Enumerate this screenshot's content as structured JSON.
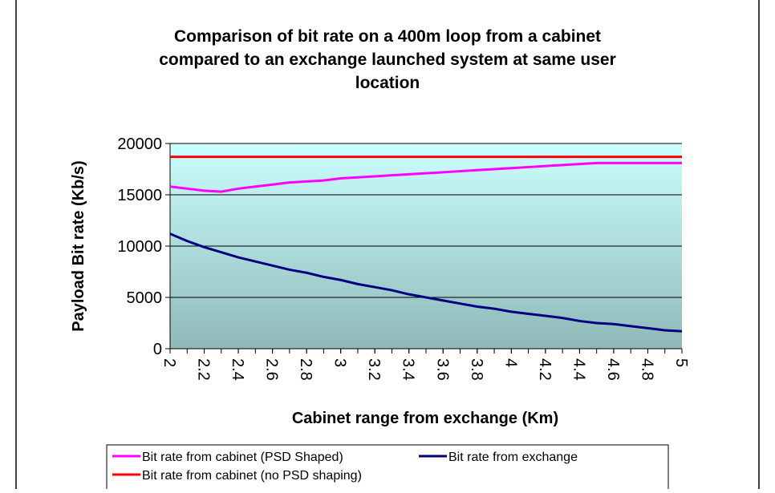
{
  "chart_data": {
    "type": "line",
    "title": "Comparison of bit rate on a 400m loop from a cabinet compared to an exchange launched system at same user location",
    "x_label": "Cabinet range from exchange (Km)",
    "y_label": "Payload Bit rate (Kb/s)",
    "x": [
      2,
      2.1,
      2.2,
      2.3,
      2.4,
      2.5,
      2.6,
      2.7,
      2.8,
      2.9,
      3,
      3.1,
      3.2,
      3.3,
      3.4,
      3.5,
      3.6,
      3.7,
      3.8,
      3.9,
      4,
      4.1,
      4.2,
      4.3,
      4.4,
      4.5,
      4.6,
      4.7,
      4.8,
      4.9,
      5
    ],
    "xlim": [
      2,
      5
    ],
    "xticks": [
      2,
      2.2,
      2.4,
      2.6,
      2.8,
      3,
      3.2,
      3.4,
      3.6,
      3.8,
      4,
      4.2,
      4.4,
      4.6,
      4.8,
      5
    ],
    "ylim": [
      0,
      20000
    ],
    "yticks": [
      0,
      5000,
      10000,
      15000,
      20000
    ],
    "grid": true,
    "legend": "bottom",
    "series": [
      {
        "name": "Bit rate from cabinet (PSD Shaped)",
        "color": "#ff00ff",
        "values": [
          15800,
          15600,
          15400,
          15300,
          15600,
          15800,
          16000,
          16200,
          16300,
          16400,
          16600,
          16700,
          16800,
          16900,
          17000,
          17100,
          17200,
          17300,
          17400,
          17500,
          17600,
          17700,
          17800,
          17900,
          18000,
          18100,
          18100,
          18100,
          18100,
          18100,
          18100
        ]
      },
      {
        "name": "Bit rate from exchange",
        "color": "#000080",
        "values": [
          11200,
          10500,
          9900,
          9400,
          8900,
          8500,
          8100,
          7700,
          7400,
          7000,
          6700,
          6300,
          6000,
          5700,
          5300,
          5000,
          4700,
          4400,
          4100,
          3900,
          3600,
          3400,
          3200,
          3000,
          2700,
          2500,
          2400,
          2200,
          2000,
          1800,
          1700
        ]
      },
      {
        "name": "Bit rate from cabinet (no PSD shaping)",
        "color": "#ff0000",
        "values": [
          18700,
          18700,
          18700,
          18700,
          18700,
          18700,
          18700,
          18700,
          18700,
          18700,
          18700,
          18700,
          18700,
          18700,
          18700,
          18700,
          18700,
          18700,
          18700,
          18700,
          18700,
          18700,
          18700,
          18700,
          18700,
          18700,
          18700,
          18700,
          18700,
          18700,
          18700
        ]
      }
    ]
  }
}
